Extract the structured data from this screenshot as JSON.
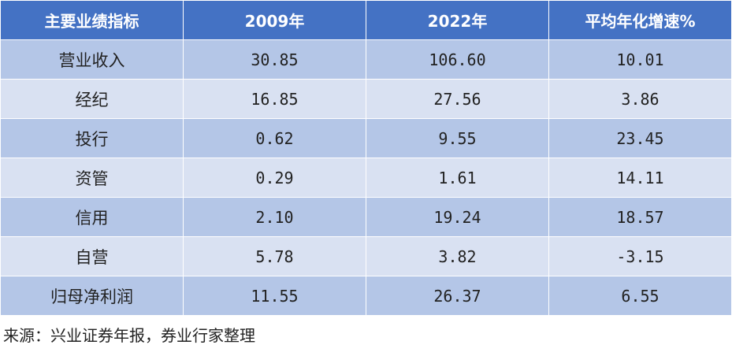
{
  "table": {
    "header": [
      "主要业绩指标",
      "2009年",
      "2022年",
      "平均年化增速%"
    ],
    "rows": [
      [
        "营业收入",
        "30.85",
        "106.60",
        "10.01"
      ],
      [
        "经纪",
        "16.85",
        "27.56",
        "3.86"
      ],
      [
        "投行",
        "0.62",
        "9.55",
        "23.45"
      ],
      [
        "资管",
        "0.29",
        "1.61",
        "14.11"
      ],
      [
        "信用",
        "2.10",
        "19.24",
        "18.57"
      ],
      [
        "自营",
        "5.78",
        "3.82",
        "-3.15"
      ],
      [
        "归母净利润",
        "11.55",
        "26.37",
        "6.55"
      ]
    ]
  },
  "source": "来源：兴业证券年报，券业行家整理"
}
